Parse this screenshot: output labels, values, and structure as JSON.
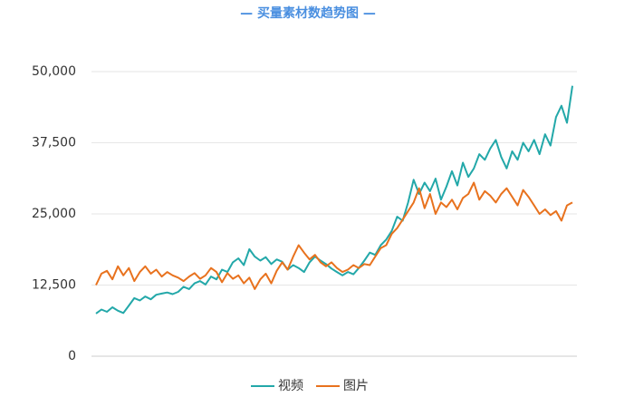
{
  "chart_data": {
    "type": "line",
    "title": "— 买量素材数趋势图 —",
    "categories": [
      null,
      null,
      null,
      null,
      null,
      null,
      null,
      null,
      null,
      null,
      null,
      null,
      null,
      null,
      null,
      null,
      null,
      null,
      null,
      null,
      null,
      null,
      null,
      null,
      null,
      null,
      null,
      null,
      null,
      null,
      null,
      null,
      null,
      null,
      null,
      null,
      null,
      null,
      null,
      null,
      null,
      null,
      null,
      null,
      null,
      null,
      null,
      null,
      null,
      null,
      null,
      null,
      null,
      null,
      null,
      null,
      null,
      null,
      null,
      null,
      null,
      null,
      null,
      null,
      null,
      null,
      null,
      null,
      null,
      null,
      null,
      null,
      null,
      null,
      null,
      null,
      null,
      null,
      null,
      null,
      null,
      null,
      null,
      null,
      null,
      null,
      null,
      null
    ],
    "series": [
      {
        "name": "视频",
        "color": "#23a8a9",
        "values": [
          7500,
          8200,
          7800,
          8600,
          8000,
          7600,
          8900,
          10200,
          9800,
          10500,
          10000,
          10800,
          11000,
          11200,
          10900,
          11300,
          12200,
          11800,
          12800,
          13200,
          12600,
          14000,
          13500,
          15200,
          14800,
          16500,
          17200,
          16000,
          18800,
          17500,
          16800,
          17400,
          16200,
          17000,
          16600,
          15200,
          16000,
          15500,
          14800,
          16500,
          17500,
          16800,
          16200,
          15400,
          14800,
          14200,
          14800,
          14400,
          15500,
          16800,
          18200,
          17800,
          19500,
          20500,
          22000,
          24500,
          23800,
          27000,
          31000,
          28500,
          30500,
          29000,
          31200,
          27500,
          29800,
          32500,
          30000,
          34000,
          31500,
          33000,
          35500,
          34500,
          36500,
          38000,
          35000,
          33000,
          36000,
          34500,
          37500,
          36000,
          38000,
          35500,
          39000,
          37000,
          42000,
          44000,
          41000,
          47500
        ]
      },
      {
        "name": "图片",
        "color": "#e8721e",
        "values": [
          12500,
          14500,
          15000,
          13500,
          15800,
          14200,
          15500,
          13200,
          14800,
          15800,
          14500,
          15200,
          14000,
          14800,
          14200,
          13800,
          13200,
          14000,
          14600,
          13600,
          14200,
          15500,
          14800,
          13000,
          14600,
          13600,
          14200,
          12800,
          13800,
          11800,
          13500,
          14500,
          12800,
          15000,
          16500,
          15200,
          17500,
          19500,
          18200,
          17000,
          17800,
          16500,
          15800,
          16500,
          15500,
          14800,
          15200,
          16000,
          15500,
          16200,
          16000,
          17500,
          19000,
          19500,
          21500,
          22500,
          24000,
          25500,
          27000,
          29500,
          26000,
          28500,
          25000,
          27000,
          26200,
          27500,
          25800,
          27800,
          28500,
          30500,
          27500,
          29000,
          28200,
          27000,
          28500,
          29500,
          28000,
          26500,
          29200,
          28000,
          26500,
          25000,
          25800,
          24800,
          25500,
          23800,
          26500,
          27000
        ]
      }
    ],
    "ylim": [
      0,
      50000
    ],
    "yticks": [
      0,
      {
        "value": 12500,
        "label": "12,500"
      },
      {
        "value": 25000,
        "label": "25,000"
      },
      {
        "value": 37500,
        "label": "37,500"
      },
      {
        "value": 50000,
        "label": "50,000"
      }
    ],
    "grid": true
  }
}
